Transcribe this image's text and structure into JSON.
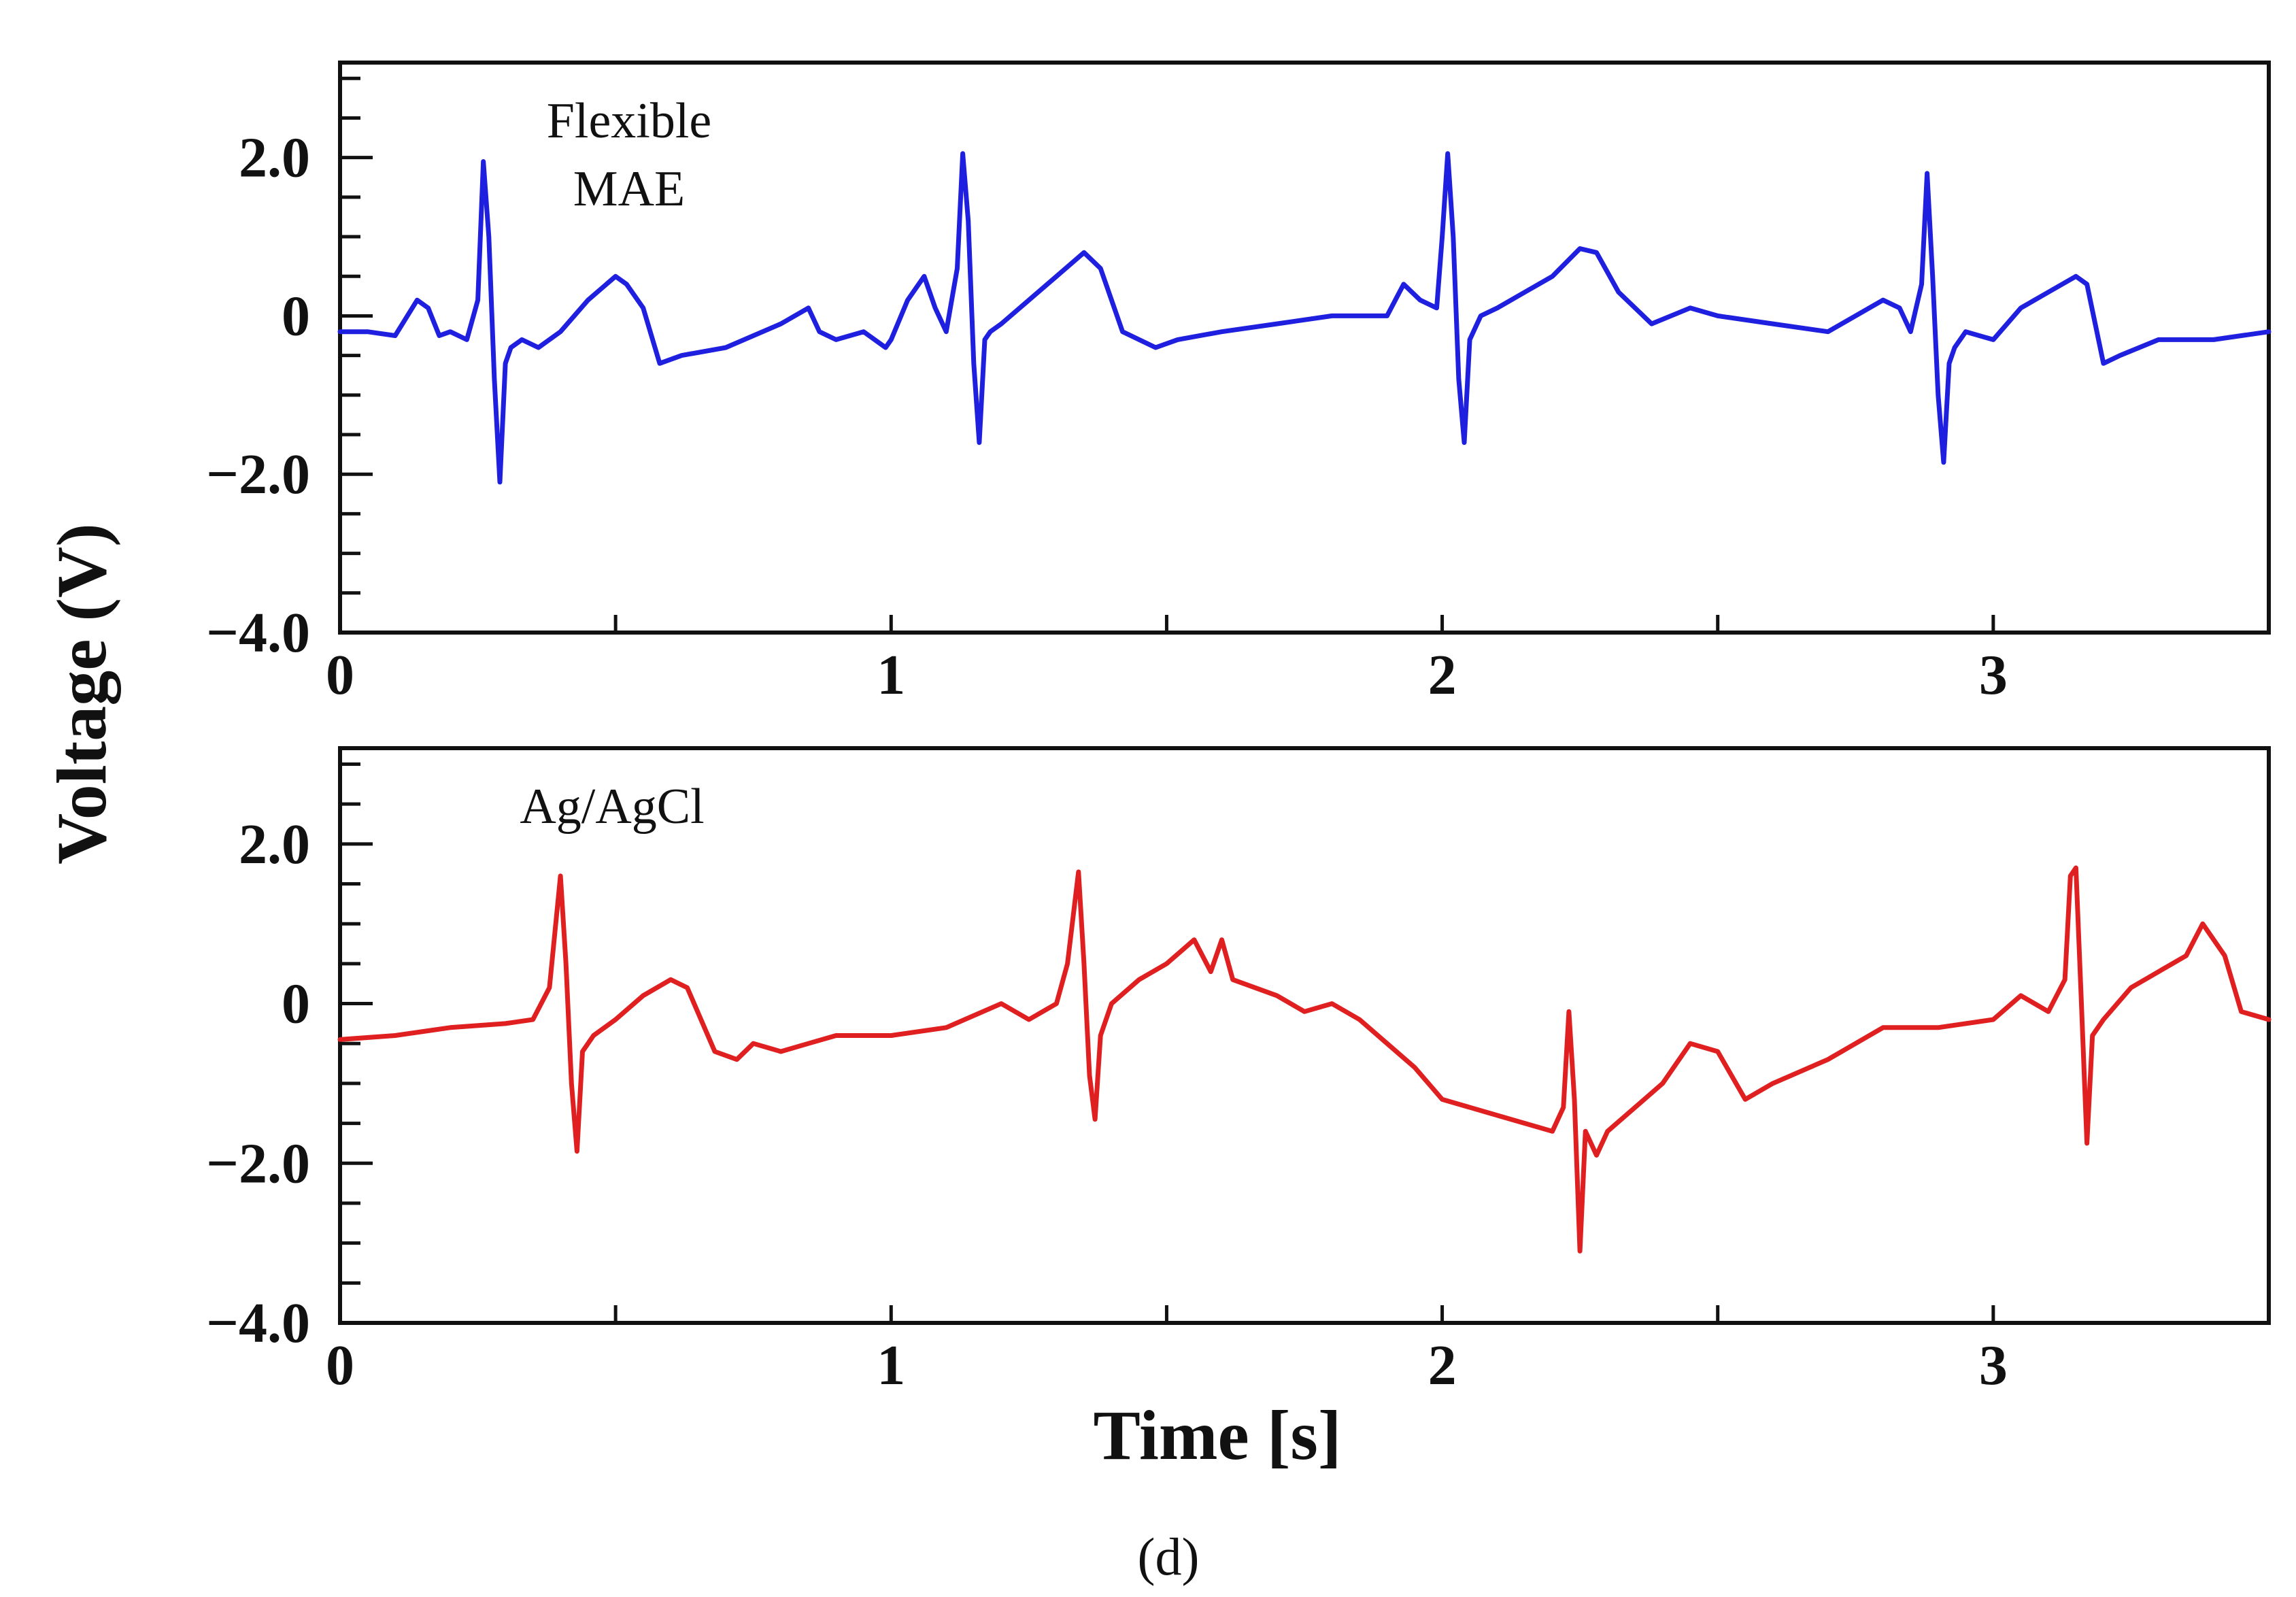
{
  "figure_label": "(d)",
  "chart_data": [
    {
      "type": "line",
      "title": "",
      "annotation": [
        "Flexible",
        "MAE"
      ],
      "xlabel": "",
      "ylabel": "Voltage (V)",
      "xlim": [
        0,
        3.5
      ],
      "ylim": [
        -4.0,
        3.2
      ],
      "x_ticks": [
        "0",
        "1",
        "2",
        "3"
      ],
      "x_tick_values": [
        0,
        1,
        2,
        3
      ],
      "y_ticks": [
        "2.0",
        "0",
        "−2.0",
        "−4.0"
      ],
      "y_tick_values": [
        2.0,
        0,
        -2.0,
        -4.0
      ],
      "series": [
        {
          "name": "Flexible MAE",
          "color": "#1f1fe0",
          "x": [
            0,
            0.05,
            0.1,
            0.14,
            0.16,
            0.18,
            0.2,
            0.23,
            0.25,
            0.26,
            0.27,
            0.28,
            0.29,
            0.3,
            0.31,
            0.33,
            0.36,
            0.4,
            0.45,
            0.5,
            0.52,
            0.55,
            0.58,
            0.62,
            0.7,
            0.8,
            0.85,
            0.87,
            0.9,
            0.95,
            0.99,
            1.0,
            1.03,
            1.06,
            1.08,
            1.1,
            1.12,
            1.13,
            1.14,
            1.15,
            1.16,
            1.17,
            1.18,
            1.2,
            1.25,
            1.3,
            1.35,
            1.38,
            1.42,
            1.48,
            1.52,
            1.6,
            1.7,
            1.8,
            1.9,
            1.93,
            1.96,
            1.99,
            2.0,
            2.01,
            2.02,
            2.03,
            2.04,
            2.05,
            2.07,
            2.1,
            2.15,
            2.2,
            2.25,
            2.28,
            2.32,
            2.38,
            2.45,
            2.5,
            2.6,
            2.7,
            2.8,
            2.83,
            2.85,
            2.87,
            2.88,
            2.89,
            2.9,
            2.91,
            2.92,
            2.93,
            2.95,
            3.0,
            3.05,
            3.1,
            3.15,
            3.17,
            3.2,
            3.23,
            3.3,
            3.4,
            3.5
          ],
          "y": [
            -0.2,
            -0.2,
            -0.25,
            0.2,
            0.1,
            -0.25,
            -0.2,
            -0.3,
            0.2,
            1.95,
            1.0,
            -0.8,
            -2.1,
            -0.6,
            -0.4,
            -0.3,
            -0.4,
            -0.2,
            0.2,
            0.5,
            0.4,
            0.1,
            -0.6,
            -0.5,
            -0.4,
            -0.1,
            0.1,
            -0.2,
            -0.3,
            -0.2,
            -0.4,
            -0.3,
            0.2,
            0.5,
            0.1,
            -0.2,
            0.6,
            2.05,
            1.2,
            -0.6,
            -1.6,
            -0.3,
            -0.2,
            -0.1,
            0.2,
            0.5,
            0.8,
            0.6,
            -0.2,
            -0.4,
            -0.3,
            -0.2,
            -0.1,
            0.0,
            0.0,
            0.4,
            0.2,
            0.1,
            1.0,
            2.05,
            1.0,
            -0.8,
            -1.6,
            -0.3,
            0.0,
            0.1,
            0.3,
            0.5,
            0.85,
            0.8,
            0.3,
            -0.1,
            0.1,
            0.0,
            -0.1,
            -0.2,
            0.2,
            0.1,
            -0.2,
            0.4,
            1.8,
            0.5,
            -1.0,
            -1.85,
            -0.6,
            -0.4,
            -0.2,
            -0.3,
            0.1,
            0.3,
            0.5,
            0.4,
            -0.6,
            -0.5,
            -0.3,
            -0.3,
            -0.2
          ]
        }
      ]
    },
    {
      "type": "line",
      "title": "",
      "annotation": [
        "Ag/AgCl"
      ],
      "xlabel": "Time [s]",
      "ylabel": "Voltage (V)",
      "xlim": [
        0,
        3.5
      ],
      "ylim": [
        -4.0,
        3.2
      ],
      "x_ticks": [
        "0",
        "1",
        "2",
        "3"
      ],
      "x_tick_values": [
        0,
        1,
        2,
        3
      ],
      "y_ticks": [
        "2.0",
        "0",
        "−2.0",
        "−4.0"
      ],
      "y_tick_values": [
        2.0,
        0,
        -2.0,
        -4.0
      ],
      "series": [
        {
          "name": "Ag/AgCl",
          "color": "#e02020",
          "x": [
            0,
            0.1,
            0.2,
            0.3,
            0.35,
            0.38,
            0.4,
            0.41,
            0.42,
            0.43,
            0.44,
            0.46,
            0.5,
            0.55,
            0.6,
            0.63,
            0.68,
            0.72,
            0.75,
            0.8,
            0.85,
            0.9,
            1.0,
            1.1,
            1.2,
            1.25,
            1.3,
            1.32,
            1.34,
            1.35,
            1.36,
            1.37,
            1.38,
            1.4,
            1.45,
            1.5,
            1.55,
            1.58,
            1.6,
            1.62,
            1.7,
            1.75,
            1.8,
            1.85,
            1.9,
            1.95,
            2.0,
            2.1,
            2.2,
            2.22,
            2.23,
            2.24,
            2.25,
            2.26,
            2.28,
            2.3,
            2.35,
            2.4,
            2.45,
            2.5,
            2.55,
            2.6,
            2.7,
            2.8,
            2.9,
            3.0,
            3.05,
            3.1,
            3.13,
            3.14,
            3.15,
            3.16,
            3.17,
            3.18,
            3.2,
            3.25,
            3.3,
            3.35,
            3.38,
            3.42,
            3.45,
            3.5
          ],
          "y": [
            -0.45,
            -0.4,
            -0.3,
            -0.25,
            -0.2,
            0.2,
            1.6,
            0.5,
            -1.0,
            -1.85,
            -0.6,
            -0.4,
            -0.2,
            0.1,
            0.3,
            0.2,
            -0.6,
            -0.7,
            -0.5,
            -0.6,
            -0.5,
            -0.4,
            -0.4,
            -0.3,
            0.0,
            -0.2,
            0.0,
            0.5,
            1.65,
            0.5,
            -0.9,
            -1.45,
            -0.4,
            0.0,
            0.3,
            0.5,
            0.8,
            0.4,
            0.8,
            0.3,
            0.1,
            -0.1,
            0.0,
            -0.2,
            -0.5,
            -0.8,
            -1.2,
            -1.4,
            -1.6,
            -1.3,
            -0.1,
            -1.2,
            -3.1,
            -1.6,
            -1.9,
            -1.6,
            -1.3,
            -1.0,
            -0.5,
            -0.6,
            -1.2,
            -1.0,
            -0.7,
            -0.3,
            -0.3,
            -0.2,
            0.1,
            -0.1,
            0.3,
            1.6,
            1.7,
            0.0,
            -1.75,
            -0.4,
            -0.2,
            0.2,
            0.4,
            0.6,
            1.0,
            0.6,
            -0.1,
            -0.2
          ]
        }
      ]
    }
  ]
}
